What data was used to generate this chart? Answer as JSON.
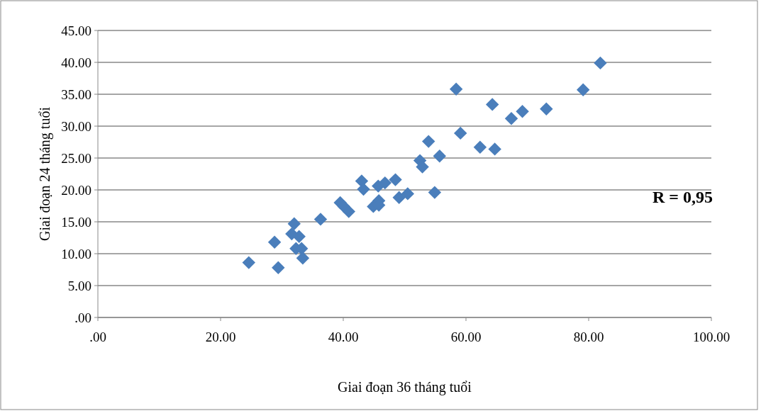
{
  "chart_data": {
    "type": "scatter",
    "xlabel": "Giai đoạn 36 tháng tuổi",
    "ylabel": "Giai đoạn 24 tháng tuổi",
    "annotations": [
      "R = 0,95"
    ],
    "xlim": [
      0,
      100
    ],
    "xticks": [
      {
        "value": 0,
        "label": ".00"
      },
      {
        "value": 20,
        "label": "20.00"
      },
      {
        "value": 40,
        "label": "40.00"
      },
      {
        "value": 60,
        "label": "60.00"
      },
      {
        "value": 80,
        "label": "80.00"
      },
      {
        "value": 100,
        "label": "100.00"
      }
    ],
    "ylim": [
      0,
      45
    ],
    "yticks": [
      {
        "value": 0,
        "label": ".00"
      },
      {
        "value": 5,
        "label": "5.00"
      },
      {
        "value": 10,
        "label": "10.00"
      },
      {
        "value": 15,
        "label": "15.00"
      },
      {
        "value": 20,
        "label": "20.00"
      },
      {
        "value": 25,
        "label": "25.00"
      },
      {
        "value": 30,
        "label": "30.00"
      },
      {
        "value": 35,
        "label": "35.00"
      },
      {
        "value": 40,
        "label": "40.00"
      },
      {
        "value": 45,
        "label": "45.00"
      }
    ],
    "grid": "y",
    "marker": "diamond",
    "series": [
      {
        "color": "#4a7ebb",
        "x": [
          24.6,
          29.4,
          28.8,
          32.0,
          31.6,
          32.8,
          32.3,
          33.2,
          33.4,
          36.3,
          39.5,
          40.1,
          40.9,
          43.0,
          43.3,
          44.9,
          45.8,
          45.8,
          45.7,
          46.8,
          48.5,
          49.1,
          50.5,
          54.9,
          52.5,
          52.9,
          53.9,
          55.7,
          58.4,
          59.1,
          62.3,
          64.7,
          64.3,
          67.4,
          69.2,
          73.1,
          79.1,
          81.9
        ],
        "values": [
          8.6,
          7.8,
          11.8,
          14.7,
          13.1,
          12.7,
          10.8,
          10.8,
          9.3,
          15.4,
          18.0,
          17.4,
          16.6,
          21.4,
          20.1,
          17.4,
          18.3,
          17.6,
          20.6,
          21.1,
          21.6,
          18.8,
          19.4,
          19.6,
          24.6,
          23.6,
          27.6,
          25.3,
          35.8,
          28.9,
          26.7,
          26.4,
          33.4,
          31.2,
          32.3,
          32.7,
          35.7,
          39.9
        ]
      }
    ]
  }
}
